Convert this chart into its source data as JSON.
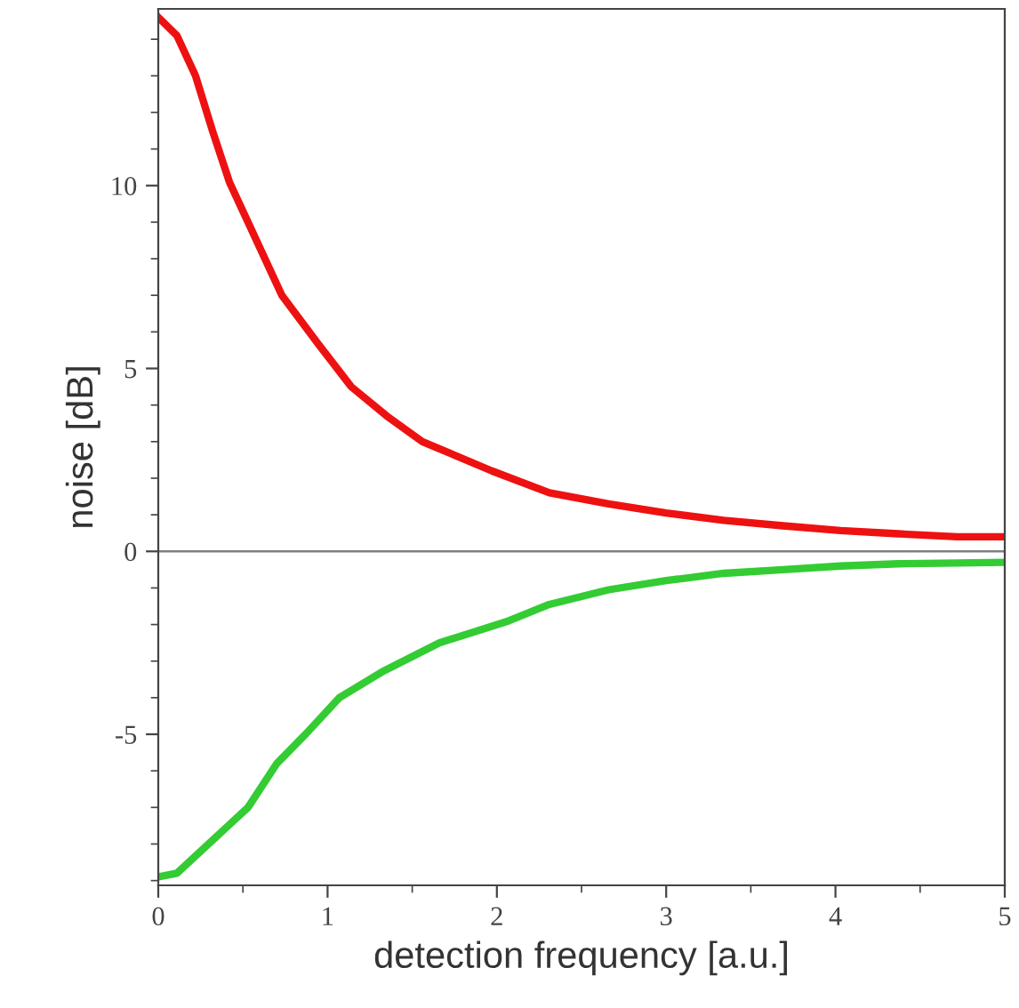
{
  "chart_data": {
    "type": "line",
    "xlabel": "detection frequency [a.u.]",
    "ylabel": "noise [dB]",
    "xlim": [
      0,
      5
    ],
    "ylim": [
      -9.13,
      14.83
    ],
    "xticks": [
      0,
      1,
      2,
      3,
      4,
      5
    ],
    "yticks": [
      -5,
      0,
      5,
      10
    ],
    "ref_lines": [
      {
        "axis": "y",
        "value": 0,
        "color": "#808080"
      }
    ],
    "grid": false,
    "marker": "none",
    "line_style": "solid",
    "series": [
      {
        "color": "#ee1111",
        "x": [
          0,
          0.11,
          0.22,
          0.32,
          0.42,
          0.6,
          0.73,
          0.94,
          1.14,
          1.35,
          1.56,
          1.97,
          2.31,
          2.66,
          3.0,
          3.34,
          3.69,
          4.03,
          4.37,
          4.72,
          5.0
        ],
        "values": [
          14.6,
          14.1,
          13.0,
          11.5,
          10.1,
          8.3,
          7.0,
          5.7,
          4.5,
          3.7,
          3.0,
          2.2,
          1.6,
          1.3,
          1.05,
          0.85,
          0.7,
          0.57,
          0.48,
          0.4,
          0.4
        ]
      },
      {
        "color": "#33cc33",
        "x": [
          0,
          0.11,
          0.32,
          0.53,
          0.7,
          0.87,
          1.07,
          1.32,
          1.66,
          2.07,
          2.31,
          2.66,
          3.0,
          3.34,
          3.69,
          4.03,
          4.37,
          4.72,
          5.0
        ],
        "values": [
          -8.9,
          -8.8,
          -7.9,
          -7.0,
          -5.8,
          -5.0,
          -4.0,
          -3.3,
          -2.5,
          -1.9,
          -1.45,
          -1.05,
          -0.8,
          -0.6,
          -0.5,
          -0.4,
          -0.34,
          -0.32,
          -0.3
        ]
      }
    ]
  }
}
